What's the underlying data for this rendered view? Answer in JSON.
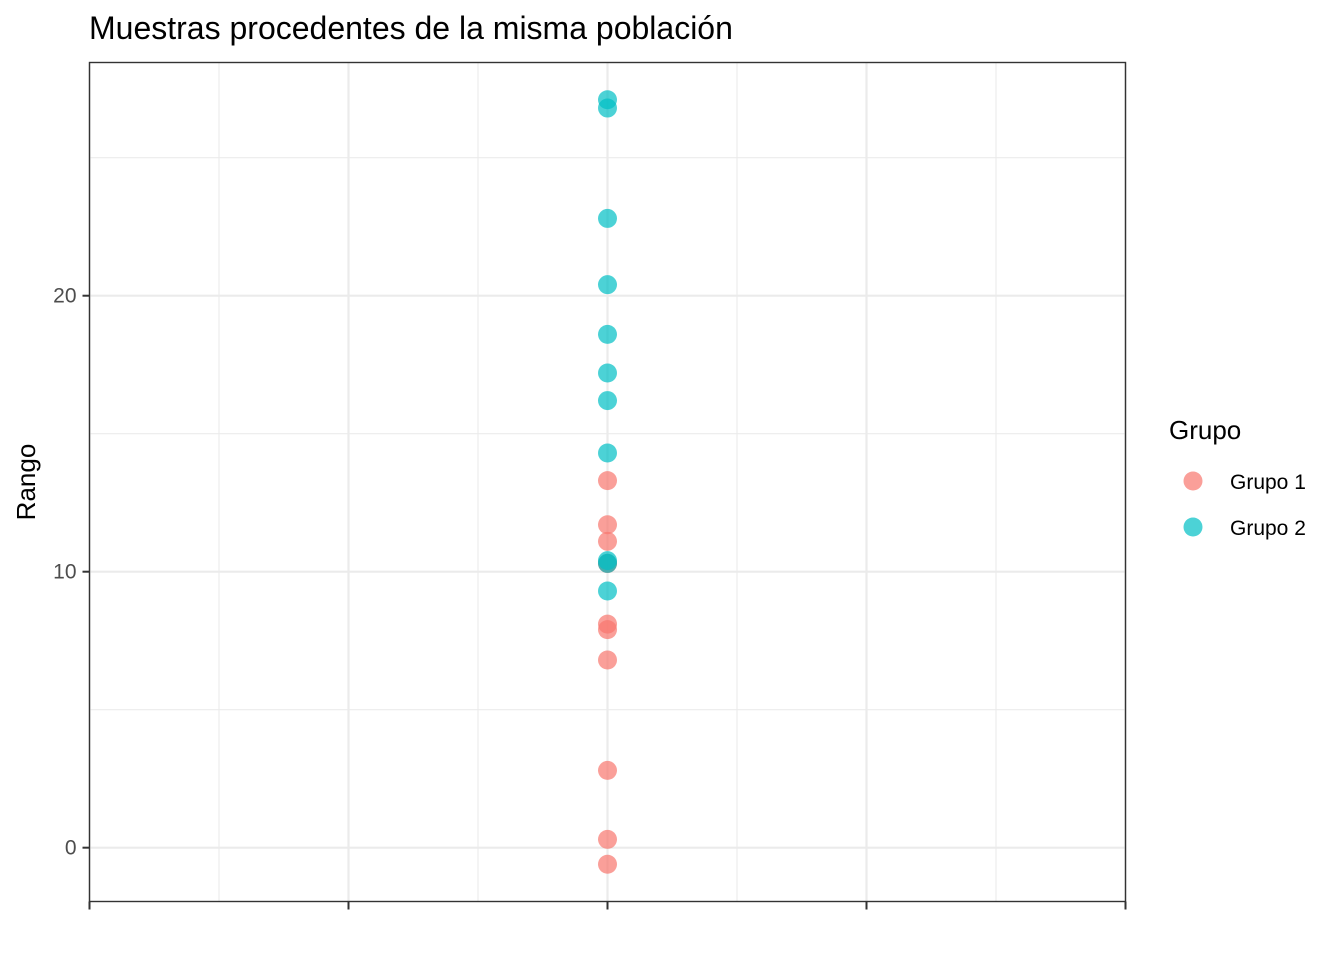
{
  "chart_data": {
    "type": "scatter",
    "title": "Muestras procedentes de la misma población",
    "xlabel": "",
    "ylabel": "Rango",
    "xlim": [
      -1,
      1
    ],
    "ylim": [
      -1.95,
      28.45
    ],
    "y_ticks": [
      0,
      10,
      20
    ],
    "y_minor_ticks": [
      5,
      15,
      25
    ],
    "x_ticks_count": 5,
    "x_minor_ticks_count": 4,
    "grid": true,
    "legend": {
      "title": "Grupo",
      "position": "right"
    },
    "series": [
      {
        "name": "Grupo 1",
        "color": "#F8766D",
        "x": [
          0,
          0,
          0,
          0,
          0,
          0,
          0,
          0,
          0,
          0,
          0
        ],
        "y": [
          13.3,
          11.7,
          11.1,
          10.3,
          8.1,
          7.9,
          6.8,
          2.8,
          0.3,
          -0.6,
          10.3
        ]
      },
      {
        "name": "Grupo 2",
        "color": "#00BFC4",
        "x": [
          0,
          0,
          0,
          0,
          0,
          0,
          0,
          0,
          0,
          0,
          0
        ],
        "y": [
          27.1,
          26.8,
          22.8,
          20.4,
          18.6,
          17.2,
          16.2,
          14.3,
          10.4,
          9.3,
          10.3
        ]
      }
    ]
  }
}
